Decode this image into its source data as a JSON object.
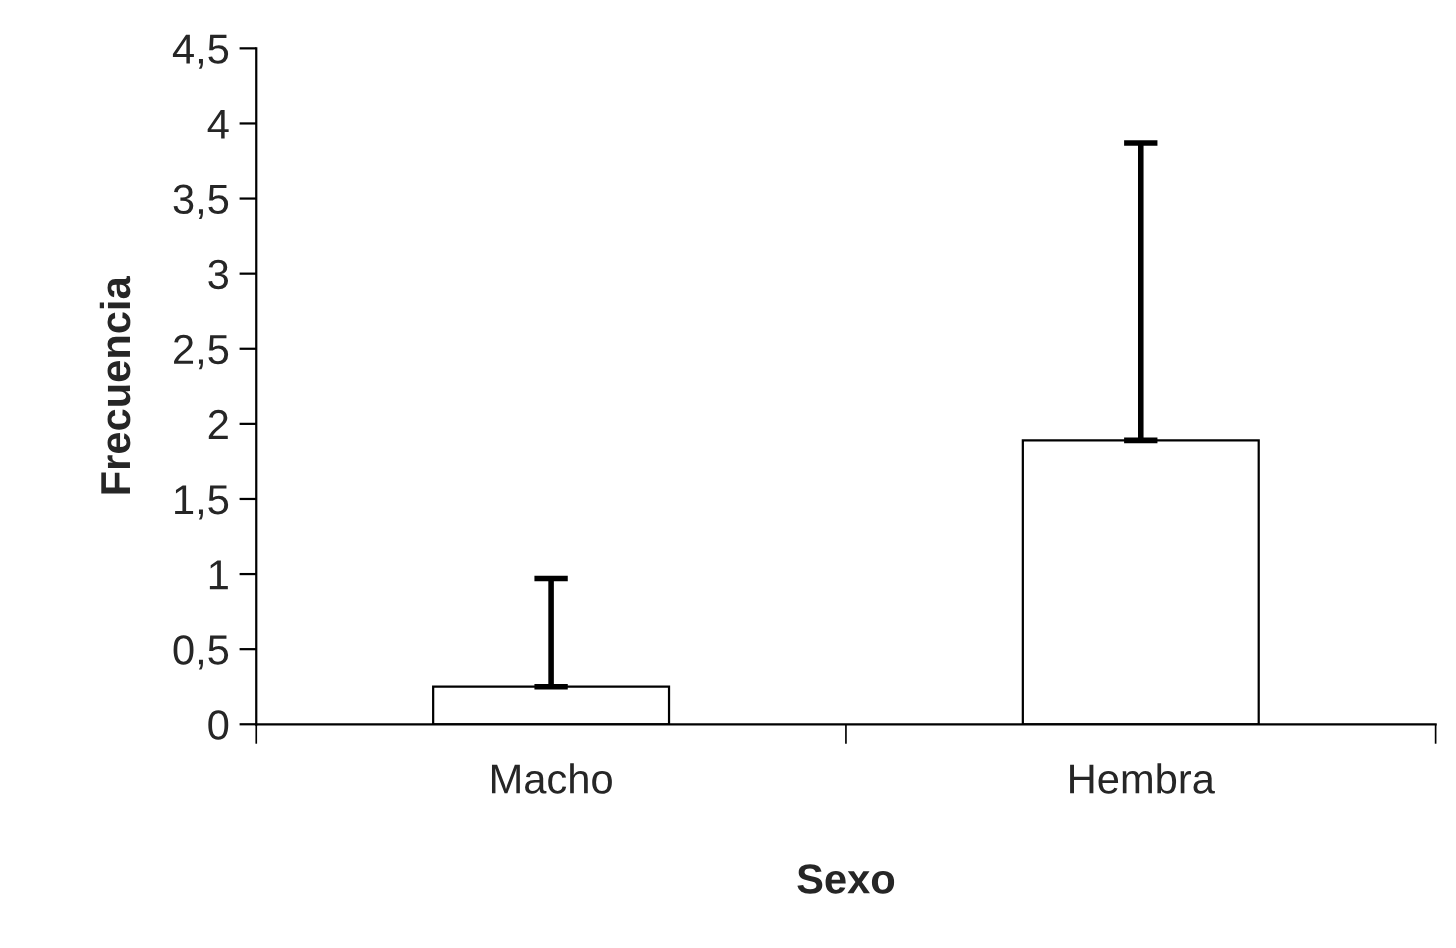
{
  "chart_data": {
    "type": "bar",
    "xlabel": "Sexo",
    "ylabel": "Frecuencia",
    "categories": [
      "Macho",
      "Hembra"
    ],
    "series": [
      {
        "color": "#ffffff",
        "values": [
          0.25,
          1.89
        ],
        "errors": [
          [
            0.25,
            0.97
          ],
          [
            1.89,
            3.87
          ]
        ]
      }
    ],
    "ylim": [
      0,
      4.5
    ],
    "yticks": [
      0,
      {
        "value": 0.5,
        "label": "0,5"
      },
      1,
      {
        "value": 1.5,
        "label": "1,5"
      },
      2,
      {
        "value": 2.5,
        "label": "2,5"
      },
      3,
      {
        "value": 3.5,
        "label": "3,5"
      },
      4,
      {
        "value": 4.5,
        "label": "4,5"
      }
    ],
    "grid": false,
    "legend": false
  }
}
